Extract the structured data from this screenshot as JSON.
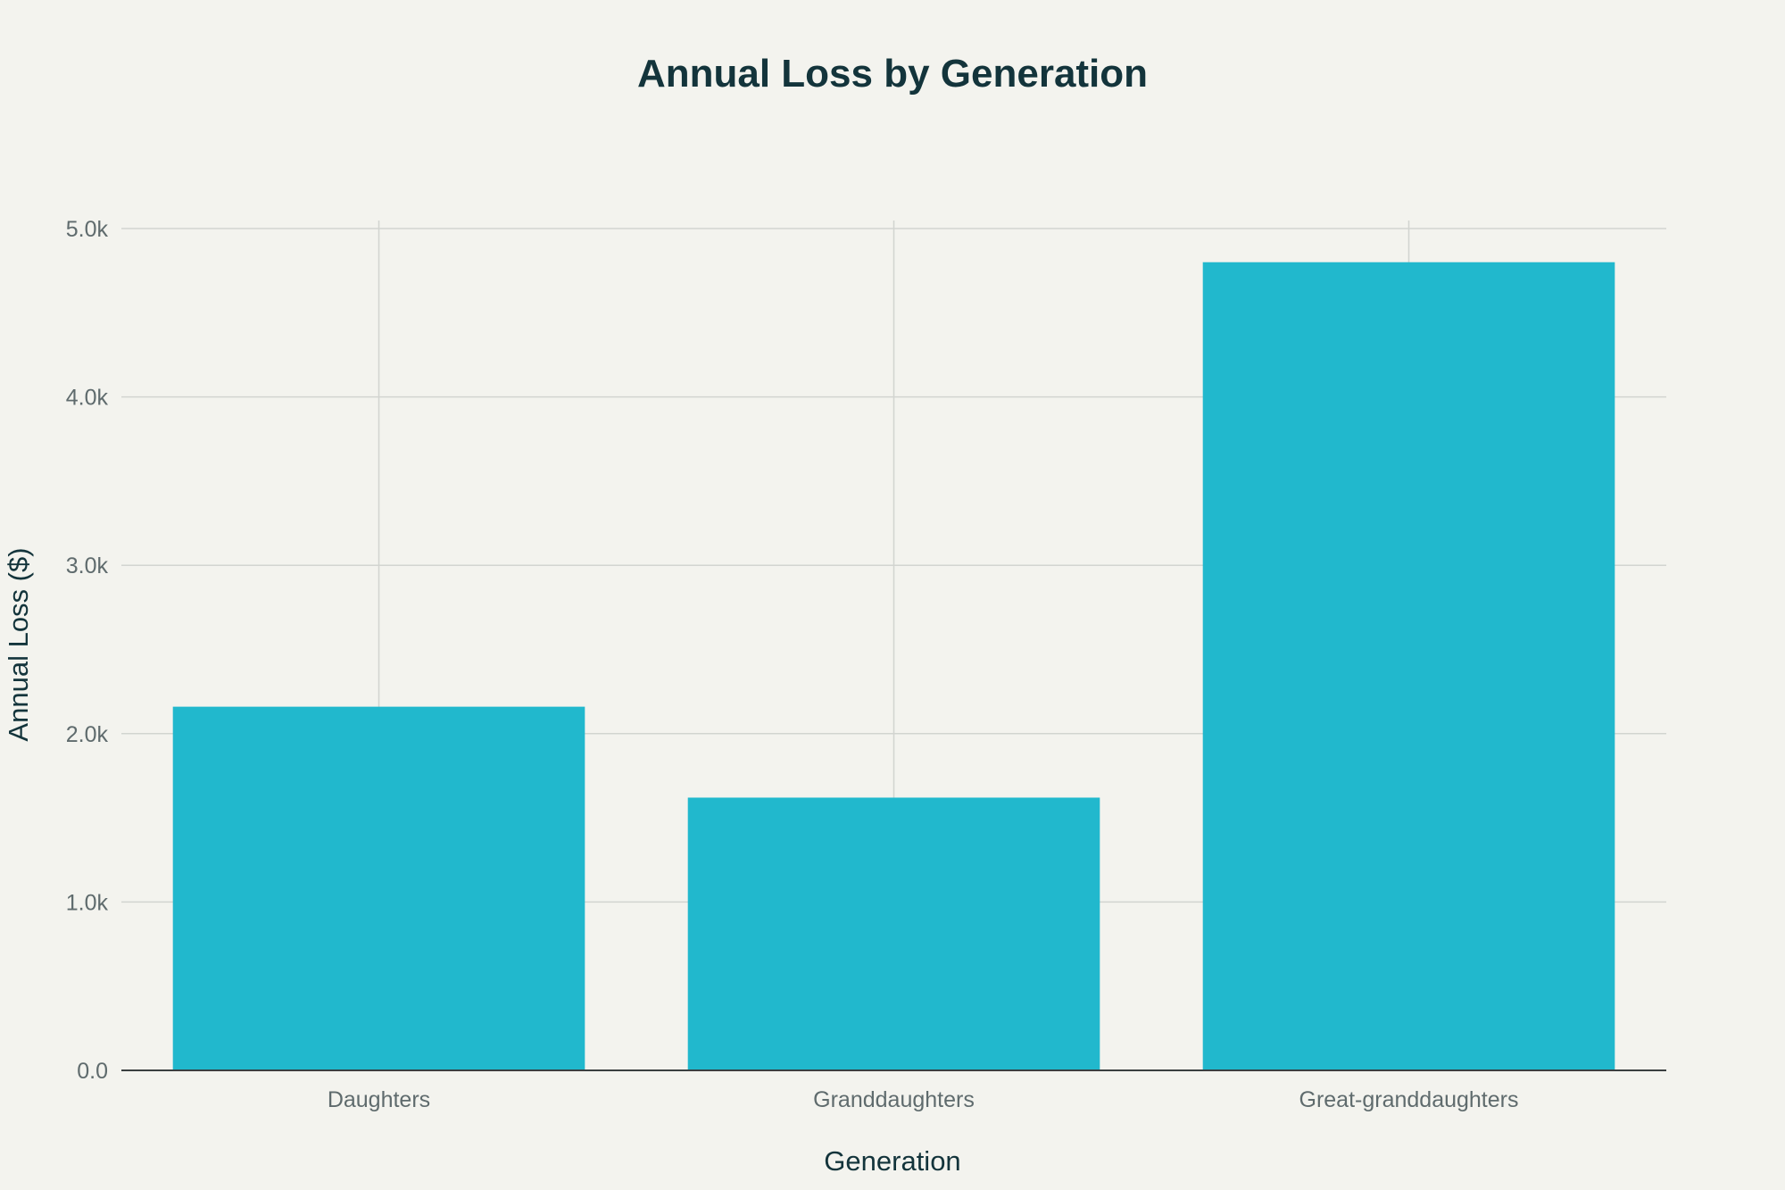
{
  "chart_data": {
    "type": "bar",
    "title": "Annual Loss by Generation",
    "xlabel": "Generation",
    "ylabel": "Annual Loss ($)",
    "categories": [
      "Daughters",
      "Granddaughters",
      "Great-granddaughters"
    ],
    "values": [
      2160,
      1620,
      4800
    ],
    "ylim": [
      0,
      5000
    ],
    "yticks": [
      0,
      1000,
      2000,
      3000,
      4000,
      5000
    ],
    "ytick_labels": [
      "0.0",
      "1.0k",
      "2.0k",
      "3.0k",
      "4.0k",
      "5.0k"
    ],
    "grid": true,
    "legend": "none",
    "bar_color": "#21b8cd"
  }
}
